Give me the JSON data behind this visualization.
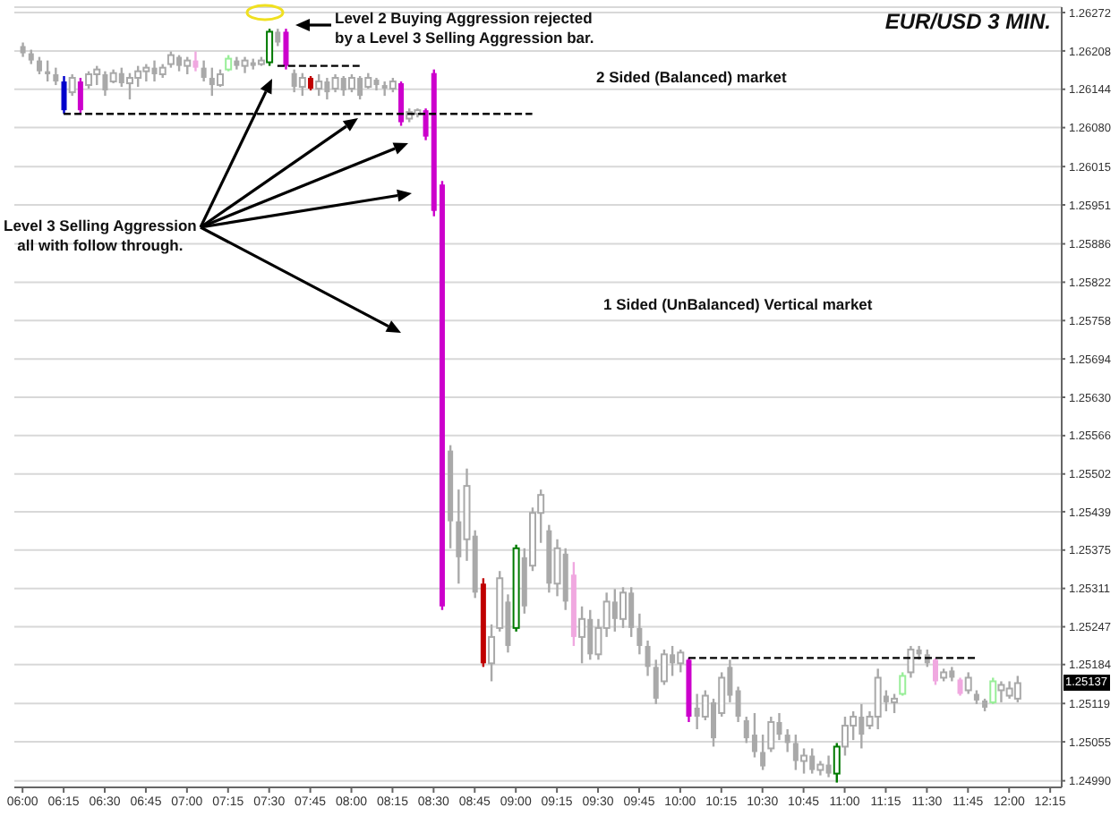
{
  "chart_data": {
    "type": "candlestick",
    "title": "EUR/USD 3 MIN.",
    "annotations": [
      "Level 2 Buying Aggression rejected\nby a Level 3 Selling Aggression bar.",
      "2 Sided (Balanced) market",
      "Level 3 Selling Aggression\nall with follow through.",
      "1 Sided (UnBalanced) Vertical market",
      "1.25137"
    ],
    "x": [
      6,
      6.05,
      6.1,
      6.15,
      6.2,
      6.25,
      6.3,
      6.35,
      6.4,
      6.45,
      6.5,
      6.55,
      6.6,
      6.65,
      6.7,
      6.75,
      6.8,
      6.85,
      6.9,
      6.95,
      7,
      7.05,
      7.1,
      7.15,
      7.2,
      7.25,
      7.3,
      7.35,
      7.4,
      7.45,
      7.5,
      7.55,
      7.6,
      7.65,
      7.7,
      7.75,
      7.8,
      7.85,
      7.9,
      7.95,
      8,
      8.05,
      8.1,
      8.15,
      8.2,
      8.25,
      8.3,
      8.35,
      8.4,
      8.45,
      8.5,
      8.55,
      8.6,
      8.65,
      8.7,
      8.75,
      8.8,
      8.85,
      8.9,
      8.95,
      9,
      9.05,
      9.1,
      9.15,
      9.2,
      9.25,
      9.3,
      9.35,
      9.4,
      9.45,
      9.5,
      9.55,
      9.6,
      9.65,
      9.7,
      9.75,
      9.8,
      9.85,
      9.9,
      9.95,
      10,
      10.05,
      10.1,
      10.15,
      10.2,
      10.25,
      10.3,
      10.35,
      10.4,
      10.45,
      10.5,
      10.55,
      10.6,
      10.65,
      10.7,
      10.75,
      10.8,
      10.85,
      10.9,
      10.95,
      11,
      11.05,
      11.1,
      11.15,
      11.2,
      11.25,
      11.3,
      11.35,
      11.4,
      11.45,
      11.5,
      11.55,
      11.6,
      11.65,
      11.7,
      11.75,
      11.8,
      11.85,
      11.9,
      11.95,
      12,
      12.05
    ],
    "ohlc": [
      [
        1.26216,
        1.26222,
        1.26198,
        1.26204
      ],
      [
        1.26204,
        1.2621,
        1.26186,
        1.26192
      ],
      [
        1.26192,
        1.26198,
        1.26169,
        1.26174
      ],
      [
        1.26174,
        1.26192,
        1.26157,
        1.26169
      ],
      [
        1.26169,
        1.2618,
        1.26151,
        1.26157
      ],
      [
        1.26157,
        1.26166,
        1.26103,
        1.26109
      ],
      [
        1.26139,
        1.26169,
        1.26133,
        1.26163
      ],
      [
        1.26157,
        1.26163,
        1.26103,
        1.26109
      ],
      [
        1.26151,
        1.26174,
        1.26145,
        1.26169
      ],
      [
        1.26169,
        1.26183,
        1.26151,
        1.26177
      ],
      [
        1.26169,
        1.26174,
        1.26133,
        1.26142
      ],
      [
        1.26157,
        1.26177,
        1.26154,
        1.26171
      ],
      [
        1.26171,
        1.2618,
        1.26148,
        1.26154
      ],
      [
        1.26154,
        1.26171,
        1.26127,
        1.26163
      ],
      [
        1.26163,
        1.26183,
        1.26148,
        1.26174
      ],
      [
        1.26174,
        1.26186,
        1.26157,
        1.2618
      ],
      [
        1.2618,
        1.26192,
        1.26157,
        1.26169
      ],
      [
        1.26169,
        1.26186,
        1.26163,
        1.2618
      ],
      [
        1.26186,
        1.26207,
        1.2618,
        1.26201
      ],
      [
        1.26198,
        1.26201,
        1.26174,
        1.26183
      ],
      [
        1.26183,
        1.26198,
        1.26169,
        1.26192
      ],
      [
        1.26192,
        1.26207,
        1.26174,
        1.2618
      ],
      [
        1.2618,
        1.26192,
        1.26157,
        1.26163
      ],
      [
        1.26163,
        1.2618,
        1.26133,
        1.26151
      ],
      [
        1.26151,
        1.26177,
        1.26148,
        1.26169
      ],
      [
        1.26177,
        1.26201,
        1.26174,
        1.26195
      ],
      [
        1.26192,
        1.26198,
        1.26177,
        1.26183
      ],
      [
        1.26183,
        1.26198,
        1.26171,
        1.26192
      ],
      [
        1.26189,
        1.26195,
        1.26177,
        1.26183
      ],
      [
        1.26186,
        1.26198,
        1.26183,
        1.26192
      ],
      [
        1.26189,
        1.26245,
        1.26183,
        1.2624
      ],
      [
        1.2624,
        1.26245,
        1.26216,
        1.26222
      ],
      [
        1.2624,
        1.26245,
        1.26177,
        1.26183
      ],
      [
        1.26171,
        1.26177,
        1.26139,
        1.26148
      ],
      [
        1.26148,
        1.26171,
        1.26133,
        1.26163
      ],
      [
        1.26163,
        1.26166,
        1.26142,
        1.26145
      ],
      [
        1.26145,
        1.26169,
        1.26133,
        1.26157
      ],
      [
        1.26157,
        1.26163,
        1.26127,
        1.26139
      ],
      [
        1.26145,
        1.26169,
        1.26139,
        1.26163
      ],
      [
        1.26163,
        1.26166,
        1.26133,
        1.26142
      ],
      [
        1.26145,
        1.26169,
        1.26139,
        1.26163
      ],
      [
        1.26163,
        1.26166,
        1.26127,
        1.26133
      ],
      [
        1.26148,
        1.26171,
        1.26145,
        1.26163
      ],
      [
        1.2616,
        1.26163,
        1.26142,
        1.26151
      ],
      [
        1.26151,
        1.26157,
        1.26133,
        1.26145
      ],
      [
        1.26145,
        1.26163,
        1.26139,
        1.26157
      ],
      [
        1.26154,
        1.26157,
        1.26083,
        1.26089
      ],
      [
        1.26095,
        1.26112,
        1.26089,
        1.26106
      ],
      [
        1.26103,
        1.26112,
        1.26097,
        1.26109
      ],
      [
        1.26109,
        1.26112,
        1.26059,
        1.26065
      ],
      [
        1.26171,
        1.26177,
        1.25932,
        1.25941
      ],
      [
        1.25985,
        1.25991,
        1.25275,
        1.25281
      ],
      [
        1.25541,
        1.2555,
        1.25378,
        1.25423
      ],
      [
        1.25423,
        1.25476,
        1.25319,
        1.25363
      ],
      [
        1.25393,
        1.25511,
        1.25357,
        1.25482
      ],
      [
        1.25399,
        1.25408,
        1.25295,
        1.25304
      ],
      [
        1.25319,
        1.25328,
        1.2518,
        1.25186
      ],
      [
        1.25186,
        1.25251,
        1.25156,
        1.2523
      ],
      [
        1.25245,
        1.2534,
        1.25239,
        1.25328
      ],
      [
        1.25289,
        1.25301,
        1.25204,
        1.25215
      ],
      [
        1.25245,
        1.25384,
        1.25239,
        1.25378
      ],
      [
        1.25363,
        1.25378,
        1.25269,
        1.25281
      ],
      [
        1.25349,
        1.25446,
        1.2534,
        1.25437
      ],
      [
        1.25437,
        1.25476,
        1.25387,
        1.25467
      ],
      [
        1.25408,
        1.25417,
        1.25304,
        1.25319
      ],
      [
        1.25319,
        1.25393,
        1.25298,
        1.25378
      ],
      [
        1.25369,
        1.25378,
        1.25275,
        1.25289
      ],
      [
        1.25334,
        1.25355,
        1.25215,
        1.2523
      ],
      [
        1.2523,
        1.25281,
        1.25186,
        1.2526
      ],
      [
        1.2526,
        1.25275,
        1.25192,
        1.25201
      ],
      [
        1.25201,
        1.2526,
        1.25192,
        1.25245
      ],
      [
        1.25245,
        1.25304,
        1.2523,
        1.25289
      ],
      [
        1.25289,
        1.2531,
        1.25239,
        1.2526
      ],
      [
        1.2526,
        1.25313,
        1.25245,
        1.25304
      ],
      [
        1.25304,
        1.25313,
        1.2523,
        1.25245
      ],
      [
        1.25245,
        1.25269,
        1.25201,
        1.25215
      ],
      [
        1.25215,
        1.25224,
        1.25165,
        1.2518
      ],
      [
        1.2518,
        1.25192,
        1.25118,
        1.25127
      ],
      [
        1.25156,
        1.25209,
        1.2515,
        1.25201
      ],
      [
        1.25201,
        1.25215,
        1.25165,
        1.25186
      ],
      [
        1.25186,
        1.25209,
        1.25171,
        1.25204
      ],
      [
        1.25192,
        1.25195,
        1.25088,
        1.25097
      ],
      [
        1.25112,
        1.25135,
        1.25076,
        1.25097
      ],
      [
        1.25097,
        1.25141,
        1.25091,
        1.25132
      ],
      [
        1.25121,
        1.25127,
        1.25047,
        1.25061
      ],
      [
        1.25103,
        1.25171,
        1.25097,
        1.25162
      ],
      [
        1.2518,
        1.25192,
        1.25121,
        1.25132
      ],
      [
        1.25141,
        1.25147,
        1.25088,
        1.25097
      ],
      [
        1.25091,
        1.25097,
        1.25053,
        1.25061
      ],
      [
        1.25067,
        1.25103,
        1.25029,
        1.25038
      ],
      [
        1.25038,
        1.25067,
        1.25008,
        1.25014
      ],
      [
        1.25044,
        1.25097,
        1.25038,
        1.25088
      ],
      [
        1.25088,
        1.25103,
        1.25058,
        1.25067
      ],
      [
        1.25067,
        1.25076,
        1.25038,
        1.25053
      ],
      [
        1.25053,
        1.25067,
        1.25008,
        1.25023
      ],
      [
        1.25023,
        1.25044,
        1.25002,
        1.25032
      ],
      [
        1.25032,
        1.25044,
        1.25002,
        1.25008
      ],
      [
        1.25008,
        1.25023,
        1.24999,
        1.25017
      ],
      [
        1.25017,
        1.25032,
        1.24996,
        1.25002
      ],
      [
        1.25002,
        1.25053,
        1.24987,
        1.25047
      ],
      [
        1.25047,
        1.25097,
        1.25032,
        1.25082
      ],
      [
        1.25082,
        1.25106,
        1.25058,
        1.25097
      ],
      [
        1.25097,
        1.25118,
        1.25044,
        1.25067
      ],
      [
        1.25082,
        1.25106,
        1.25076,
        1.25097
      ],
      [
        1.25097,
        1.25177,
        1.25076,
        1.25162
      ],
      [
        1.25132,
        1.25141,
        1.25106,
        1.25121
      ],
      [
        1.25121,
        1.25135,
        1.25103,
        1.25127
      ],
      [
        1.25135,
        1.25171,
        1.25132,
        1.25165
      ],
      [
        1.25171,
        1.25215,
        1.25162,
        1.25209
      ],
      [
        1.25209,
        1.25215,
        1.25192,
        1.25201
      ],
      [
        1.25201,
        1.25209,
        1.2518,
        1.25186
      ],
      [
        1.25192,
        1.25195,
        1.2515,
        1.25156
      ],
      [
        1.25162,
        1.25177,
        1.25156,
        1.25171
      ],
      [
        1.25174,
        1.2518,
        1.25156,
        1.25162
      ],
      [
        1.25159,
        1.25162,
        1.25132,
        1.25135
      ],
      [
        1.25141,
        1.25171,
        1.25135,
        1.25162
      ],
      [
        1.25135,
        1.25141,
        1.25118,
        1.25124
      ],
      [
        1.25124,
        1.25127,
        1.25106,
        1.25112
      ],
      [
        1.25121,
        1.25162,
        1.25118,
        1.25156
      ],
      [
        1.25141,
        1.25156,
        1.25121,
        1.2515
      ],
      [
        1.25132,
        1.25156,
        1.25127,
        1.25144
      ],
      [
        1.25127,
        1.25165,
        1.25121,
        1.25153
      ]
    ],
    "colors": [
      "#a9a9a9",
      "#a9a9a9",
      "#a9a9a9",
      "#a9a9a9",
      "#a9a9a9",
      "#0000cc",
      "#a9a9a9",
      "#cc00cc",
      "#a9a9a9",
      "#a9a9a9",
      "#a9a9a9",
      "#a9a9a9",
      "#a9a9a9",
      "#a9a9a9",
      "#a9a9a9",
      "#a9a9a9",
      "#a9a9a9",
      "#a9a9a9",
      "#a9a9a9",
      "#a9a9a9",
      "#a9a9a9",
      "#f0a8e0",
      "#a9a9a9",
      "#a9a9a9",
      "#a9a9a9",
      "#99ee99",
      "#a9a9a9",
      "#a9a9a9",
      "#a9a9a9",
      "#a9a9a9",
      "#007a00",
      "#a9a9a9",
      "#cc00cc",
      "#a9a9a9",
      "#a9a9a9",
      "#c00000",
      "#a9a9a9",
      "#a9a9a9",
      "#a9a9a9",
      "#a9a9a9",
      "#a9a9a9",
      "#a9a9a9",
      "#a9a9a9",
      "#a9a9a9",
      "#a9a9a9",
      "#a9a9a9",
      "#cc00cc",
      "#a9a9a9",
      "#a9a9a9",
      "#cc00cc",
      "#cc00cc",
      "#cc00cc",
      "#a9a9a9",
      "#a9a9a9",
      "#a9a9a9",
      "#a9a9a9",
      "#c00000",
      "#a9a9a9",
      "#a9a9a9",
      "#a9a9a9",
      "#007a00",
      "#a9a9a9",
      "#a9a9a9",
      "#a9a9a9",
      "#a9a9a9",
      "#a9a9a9",
      "#a9a9a9",
      "#f0a8e0",
      "#a9a9a9",
      "#a9a9a9",
      "#a9a9a9",
      "#a9a9a9",
      "#a9a9a9",
      "#a9a9a9",
      "#a9a9a9",
      "#a9a9a9",
      "#a9a9a9",
      "#a9a9a9",
      "#a9a9a9",
      "#a9a9a9",
      "#a9a9a9",
      "#cc00cc",
      "#a9a9a9",
      "#a9a9a9",
      "#a9a9a9",
      "#a9a9a9",
      "#a9a9a9",
      "#a9a9a9",
      "#a9a9a9",
      "#a9a9a9",
      "#a9a9a9",
      "#a9a9a9",
      "#a9a9a9",
      "#a9a9a9",
      "#a9a9a9",
      "#a9a9a9",
      "#a9a9a9",
      "#a9a9a9",
      "#a9a9a9",
      "#007a00",
      "#a9a9a9",
      "#a9a9a9",
      "#a9a9a9",
      "#a9a9a9",
      "#a9a9a9",
      "#a9a9a9",
      "#a9a9a9",
      "#99ee99",
      "#a9a9a9",
      "#a9a9a9",
      "#a9a9a9",
      "#f0a8e0",
      "#a9a9a9",
      "#a9a9a9",
      "#f0a8e0",
      "#a9a9a9",
      "#a9a9a9",
      "#a9a9a9",
      "#99ee99",
      "#a9a9a9",
      "#a9a9a9",
      "#a9a9a9"
    ],
    "series": [
      {
        "type": "line",
        "x": [
          7.55,
          8.05
        ],
        "values": [
          1.26183,
          1.26183
        ],
        "color": "#000000",
        "line_style": "dashed"
      },
      {
        "type": "line",
        "x": [
          6.25,
          9.1
        ],
        "values": [
          1.26103,
          1.26103
        ],
        "color": "#000000",
        "line_style": "dashed"
      },
      {
        "type": "line",
        "x": [
          10.05,
          11.8
        ],
        "values": [
          1.25195,
          1.25195
        ],
        "color": "#000000",
        "line_style": "dashed"
      }
    ],
    "xlim": [
      5.95,
      12.32
    ],
    "xticks": [
      {
        "value": 6,
        "label": "06:00"
      },
      {
        "value": 6.25,
        "label": "06:15"
      },
      {
        "value": 6.5,
        "label": "06:30"
      },
      {
        "value": 6.75,
        "label": "06:45"
      },
      {
        "value": 7,
        "label": "07:00"
      },
      {
        "value": 7.25,
        "label": "07:15"
      },
      {
        "value": 7.5,
        "label": "07:30"
      },
      {
        "value": 7.75,
        "label": "07:45"
      },
      {
        "value": 8,
        "label": "08:00"
      },
      {
        "value": 8.25,
        "label": "08:15"
      },
      {
        "value": 8.5,
        "label": "08:30"
      },
      {
        "value": 8.75,
        "label": "08:45"
      },
      {
        "value": 9,
        "label": "09:00"
      },
      {
        "value": 9.25,
        "label": "09:15"
      },
      {
        "value": 9.5,
        "label": "09:30"
      },
      {
        "value": 9.75,
        "label": "09:45"
      },
      {
        "value": 10,
        "label": "10:00"
      },
      {
        "value": 10.25,
        "label": "10:15"
      },
      {
        "value": 10.5,
        "label": "10:30"
      },
      {
        "value": 10.75,
        "label": "10:45"
      },
      {
        "value": 11,
        "label": "11:00"
      },
      {
        "value": 11.25,
        "label": "11:15"
      },
      {
        "value": 11.5,
        "label": "11:30"
      },
      {
        "value": 11.75,
        "label": "11:45"
      },
      {
        "value": 12,
        "label": "12:00"
      },
      {
        "value": 12.25,
        "label": "12:15"
      }
    ],
    "ylim": [
      1.24979,
      1.26281
    ],
    "yticks": [
      1.26272,
      1.26208,
      1.26144,
      {
        "value": 1.2608,
        "label": "1.26080"
      },
      1.26015,
      1.25951,
      1.25886,
      1.25822,
      1.25758,
      1.25694,
      {
        "value": 1.2563,
        "label": "1.25630"
      },
      1.25566,
      1.25502,
      1.25439,
      1.25375,
      1.25311,
      1.25247,
      1.25184,
      1.25119,
      1.25055,
      {
        "value": 1.2499,
        "label": "1.24990"
      }
    ],
    "grid": "y"
  }
}
